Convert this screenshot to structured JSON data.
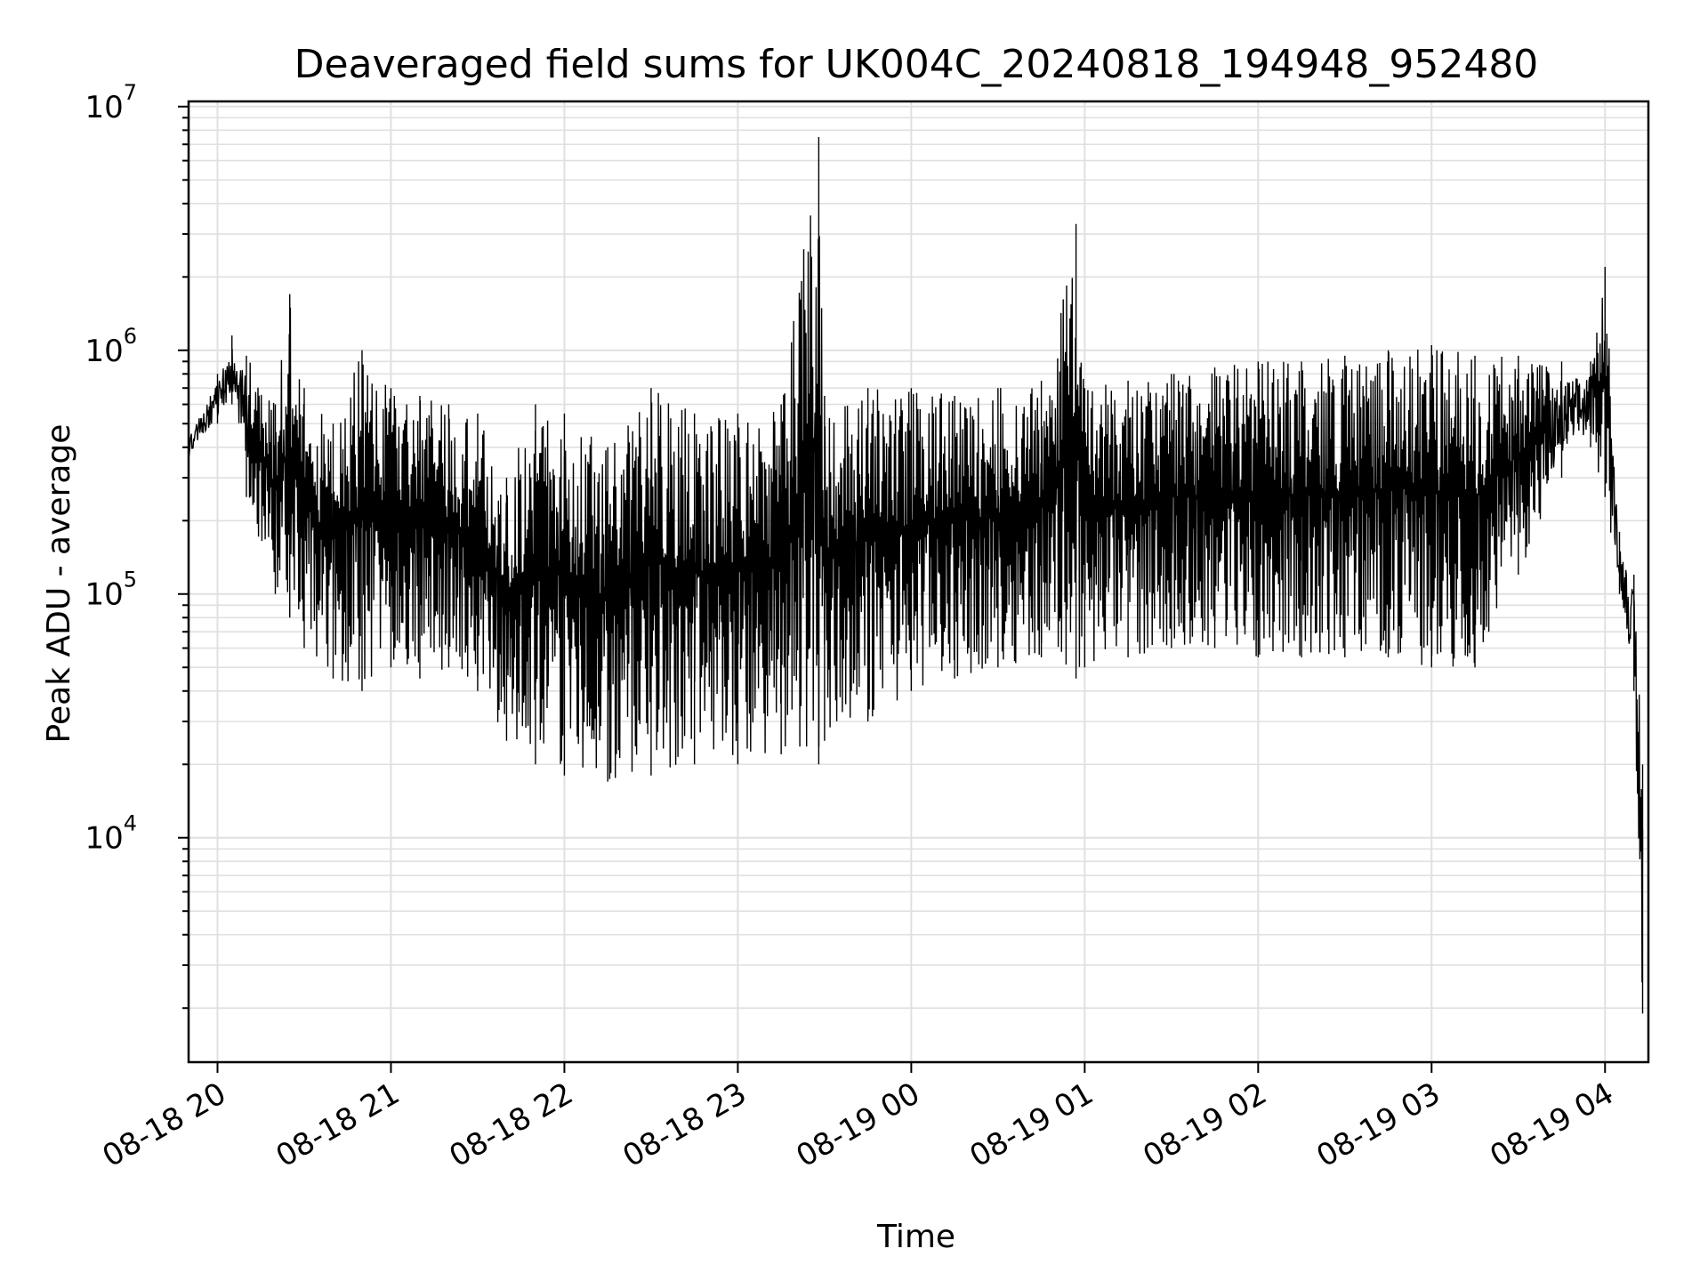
{
  "chart_data": {
    "type": "line",
    "title": "Deaveraged field sums for UK004C_20240818_194948_952480",
    "xlabel": "Time",
    "ylabel": "Peak ADU - average",
    "yscale": "log",
    "ylim": [
      1200,
      10500000
    ],
    "xlim": [
      "2024-08-18 19:50",
      "2024-08-19 04:15"
    ],
    "grid": true,
    "line_color": "#000000",
    "grid_color": "#e0e0e0",
    "x_ticks": [
      {
        "value": "2024-08-18 20:00",
        "label": "08-18 20"
      },
      {
        "value": "2024-08-18 21:00",
        "label": "08-18 21"
      },
      {
        "value": "2024-08-18 22:00",
        "label": "08-18 22"
      },
      {
        "value": "2024-08-18 23:00",
        "label": "08-18 23"
      },
      {
        "value": "2024-08-19 00:00",
        "label": "08-19 00"
      },
      {
        "value": "2024-08-19 01:00",
        "label": "08-19 01"
      },
      {
        "value": "2024-08-19 02:00",
        "label": "08-19 02"
      },
      {
        "value": "2024-08-19 03:00",
        "label": "08-19 03"
      },
      {
        "value": "2024-08-19 04:00",
        "label": "08-19 04"
      }
    ],
    "y_ticks": [
      {
        "value": 10000,
        "base": "10",
        "exp": "4"
      },
      {
        "value": 100000,
        "base": "10",
        "exp": "5"
      },
      {
        "value": 1000000,
        "base": "10",
        "exp": "6"
      },
      {
        "value": 10000000,
        "base": "10",
        "exp": "7"
      }
    ],
    "series": [
      {
        "x": [
          "2024-08-18 19:50",
          "2024-08-18 20:00",
          "2024-08-18 20:05",
          "2024-08-18 20:10",
          "2024-08-18 20:20",
          "2024-08-18 20:25",
          "2024-08-18 20:30",
          "2024-08-18 20:40",
          "2024-08-18 20:50",
          "2024-08-18 21:00",
          "2024-08-18 21:10",
          "2024-08-18 21:20",
          "2024-08-18 21:30",
          "2024-08-18 21:40",
          "2024-08-18 21:50",
          "2024-08-18 22:00",
          "2024-08-18 22:15",
          "2024-08-18 22:30",
          "2024-08-18 22:45",
          "2024-08-18 23:00",
          "2024-08-18 23:15",
          "2024-08-18 23:28",
          "2024-08-18 23:30",
          "2024-08-18 23:45",
          "2024-08-19 00:00",
          "2024-08-19 00:15",
          "2024-08-19 00:30",
          "2024-08-19 00:45",
          "2024-08-19 00:57",
          "2024-08-19 01:00",
          "2024-08-19 01:15",
          "2024-08-19 01:30",
          "2024-08-19 01:45",
          "2024-08-19 02:00",
          "2024-08-19 02:15",
          "2024-08-19 02:30",
          "2024-08-19 02:45",
          "2024-08-19 03:00",
          "2024-08-19 03:15",
          "2024-08-19 03:30",
          "2024-08-19 03:45",
          "2024-08-19 03:55",
          "2024-08-19 04:00",
          "2024-08-19 04:05",
          "2024-08-19 04:10",
          "2024-08-19 04:13"
        ],
        "upper": [
          450000,
          800000,
          1150000,
          950000,
          600000,
          1700000,
          700000,
          500000,
          1000000,
          700000,
          650000,
          600000,
          550000,
          300000,
          600000,
          550000,
          400000,
          700000,
          550000,
          550000,
          600000,
          7500000,
          650000,
          700000,
          700000,
          650000,
          700000,
          750000,
          3300000,
          700000,
          750000,
          800000,
          850000,
          900000,
          900000,
          950000,
          1000000,
          1050000,
          950000,
          950000,
          900000,
          900000,
          2200000,
          180000,
          120000,
          20000
        ],
        "lower": [
          350000,
          500000,
          600000,
          250000,
          100000,
          80000,
          60000,
          45000,
          40000,
          50000,
          45000,
          50000,
          40000,
          25000,
          20000,
          18000,
          17000,
          18000,
          20000,
          20000,
          22000,
          20000,
          25000,
          30000,
          40000,
          45000,
          50000,
          55000,
          45000,
          50000,
          55000,
          60000,
          60000,
          55000,
          55000,
          55000,
          55000,
          50000,
          50000,
          120000,
          300000,
          400000,
          250000,
          100000,
          40000,
          1900
        ]
      }
    ]
  }
}
